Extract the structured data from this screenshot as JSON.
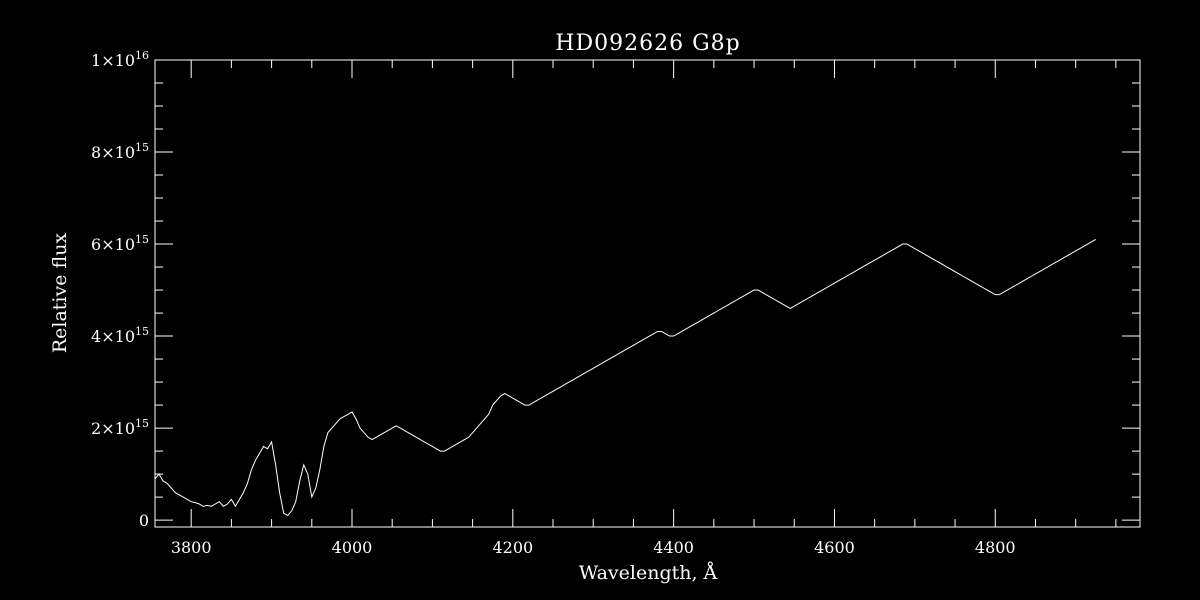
{
  "chart_data": {
    "type": "line",
    "title": "HD092626   G8p",
    "xlabel": "Wavelength, Å",
    "ylabel": "Relative flux",
    "xlim": [
      3755,
      4980
    ],
    "ylim": [
      -150000000000000.0,
      1e+16
    ],
    "x_ticks": [
      {
        "value": 3800,
        "label": "3800"
      },
      {
        "value": 4000,
        "label": "4000"
      },
      {
        "value": 4200,
        "label": "4200"
      },
      {
        "value": 4400,
        "label": "4400"
      },
      {
        "value": 4600,
        "label": "4600"
      },
      {
        "value": 4800,
        "label": "4800"
      }
    ],
    "y_ticks": [
      {
        "value": 0,
        "mantissa": "0",
        "exponent": ""
      },
      {
        "value": 2000000000000000.0,
        "mantissa": "2×10",
        "exponent": "15"
      },
      {
        "value": 4000000000000000.0,
        "mantissa": "4×10",
        "exponent": "15"
      },
      {
        "value": 6000000000000000.0,
        "mantissa": "6×10",
        "exponent": "15"
      },
      {
        "value": 8000000000000000.0,
        "mantissa": "8×10",
        "exponent": "15"
      },
      {
        "value": 1e+16,
        "mantissa": "1×10",
        "exponent": "16"
      }
    ],
    "series": [
      {
        "color": "#ffffff",
        "x_start": 3755,
        "x_step": 5,
        "y": [
          900000000000000.0,
          1000000000000000.0,
          850000000000000.0,
          800000000000000.0,
          700000000000000.0,
          600000000000000.0,
          550000000000000.0,
          500000000000000.0,
          450000000000000.0,
          400000000000000.0,
          380000000000000.0,
          350000000000000.0,
          300000000000000.0,
          320000000000000.0,
          300000000000000.0,
          350000000000000.0,
          400000000000000.0,
          300000000000000.0,
          350000000000000.0,
          450000000000000.0,
          300000000000000.0,
          450000000000000.0,
          600000000000000.0,
          800000000000000.0,
          1100000000000000.0,
          1300000000000000.0,
          1450000000000000.0,
          1600000000000000.0,
          1550000000000000.0,
          1700000000000000.0,
          1200000000000000.0,
          600000000000000.0,
          150000000000000.0,
          100000000000000.0,
          200000000000000.0,
          400000000000000.0,
          850000000000000.0,
          1200000000000000.0,
          1000000000000000.0,
          500000000000000.0,
          700000000000000.0,
          1100000000000000.0,
          1600000000000000.0,
          1900000000000000.0,
          2000000000000000.0,
          2100000000000000.0,
          2200000000000000.0,
          2250000000000000.0,
          2300000000000000.0,
          2350000000000000.0,
          2200000000000000.0,
          2000000000000000.0,
          1900000000000000.0,
          1800000000000000.0,
          1750000000000000.0,
          1800000000000000.0,
          1850000000000000.0,
          1900000000000000.0,
          1950000000000000.0,
          2000000000000000.0,
          2050000000000000.0,
          2000000000000000.0,
          1950000000000000.0,
          1900000000000000.0,
          1850000000000000.0,
          1800000000000000.0,
          1750000000000000.0,
          1700000000000000.0,
          1650000000000000.0,
          1600000000000000.0,
          1550000000000000.0,
          1500000000000000.0,
          1500000000000000.0,
          1550000000000000.0,
          1600000000000000.0,
          1650000000000000.0,
          1700000000000000.0,
          1750000000000000.0,
          1800000000000000.0,
          1900000000000000.0,
          2000000000000000.0,
          2100000000000000.0,
          2200000000000000.0,
          2300000000000000.0,
          2500000000000000.0,
          2600000000000000.0,
          2700000000000000.0,
          2750000000000000.0,
          2700000000000000.0,
          2650000000000000.0,
          2600000000000000.0,
          2550000000000000.0,
          2500000000000000.0,
          2500000000000000.0,
          2550000000000000.0,
          2600000000000000.0,
          2650000000000000.0,
          2700000000000000.0,
          2750000000000000.0,
          2800000000000000.0,
          2850000000000000.0,
          2900000000000000.0,
          2950000000000000.0,
          3000000000000000.0,
          3050000000000000.0,
          3100000000000000.0,
          3150000000000000.0,
          3200000000000000.0,
          3250000000000000.0,
          3300000000000000.0,
          3350000000000000.0,
          3400000000000000.0,
          3450000000000000.0,
          3500000000000000.0,
          3550000000000000.0,
          3600000000000000.0,
          3650000000000000.0,
          3700000000000000.0,
          3750000000000000.0,
          3800000000000000.0,
          3850000000000000.0,
          3900000000000000.0,
          3950000000000000.0,
          4000000000000000.0,
          4050000000000000.0,
          4100000000000000.0,
          4100000000000000.0,
          4050000000000000.0,
          4000000000000000.0,
          4000000000000000.0,
          4050000000000000.0,
          4100000000000000.0,
          4150000000000000.0,
          4200000000000000.0,
          4250000000000000.0,
          4300000000000000.0,
          4350000000000000.0,
          4400000000000000.0,
          4450000000000000.0,
          4500000000000000.0,
          4550000000000000.0,
          4600000000000000.0,
          4650000000000000.0,
          4700000000000000.0,
          4750000000000000.0,
          4800000000000000.0,
          4850000000000000.0,
          4900000000000000.0,
          4950000000000000.0,
          5000000000000000.0,
          5000000000000000.0,
          4950000000000000.0,
          4900000000000000.0,
          4850000000000000.0,
          4800000000000000.0,
          4750000000000000.0,
          4700000000000000.0,
          4650000000000000.0,
          4600000000000000.0,
          4650000000000000.0,
          4700000000000000.0,
          4750000000000000.0,
          4800000000000000.0,
          4850000000000000.0,
          4900000000000000.0,
          4950000000000000.0,
          5000000000000000.0,
          5050000000000000.0,
          5100000000000000.0,
          5150000000000000.0,
          5200000000000000.0,
          5250000000000000.0,
          5300000000000000.0,
          5350000000000000.0,
          5400000000000000.0,
          5450000000000000.0,
          5500000000000000.0,
          5550000000000000.0,
          5600000000000000.0,
          5650000000000000.0,
          5700000000000000.0,
          5750000000000000.0,
          5800000000000000.0,
          5850000000000000.0,
          5900000000000000.0,
          5950000000000000.0,
          6000000000000000.0,
          6000000000000000.0,
          5950000000000000.0,
          5900000000000000.0,
          5850000000000000.0,
          5800000000000000.0,
          5750000000000000.0,
          5700000000000000.0,
          5650000000000000.0,
          5600000000000000.0,
          5550000000000000.0,
          5500000000000000.0,
          5450000000000000.0,
          5400000000000000.0,
          5350000000000000.0,
          5300000000000000.0,
          5250000000000000.0,
          5200000000000000.0,
          5150000000000000.0,
          5100000000000000.0,
          5050000000000000.0,
          5000000000000000.0,
          4950000000000000.0,
          4900000000000000.0,
          4900000000000000.0,
          4950000000000000.0,
          5000000000000000.0,
          5050000000000000.0,
          5100000000000000.0,
          5150000000000000.0,
          5200000000000000.0,
          5250000000000000.0,
          5300000000000000.0,
          5350000000000000.0,
          5400000000000000.0,
          5450000000000000.0,
          5500000000000000.0,
          5550000000000000.0,
          5600000000000000.0,
          5650000000000000.0,
          5700000000000000.0,
          5750000000000000.0,
          5800000000000000.0,
          5850000000000000.0,
          5900000000000000.0,
          5950000000000000.0,
          6000000000000000.0,
          6050000000000000.0,
          6100000000000000.0
        ]
      }
    ]
  }
}
